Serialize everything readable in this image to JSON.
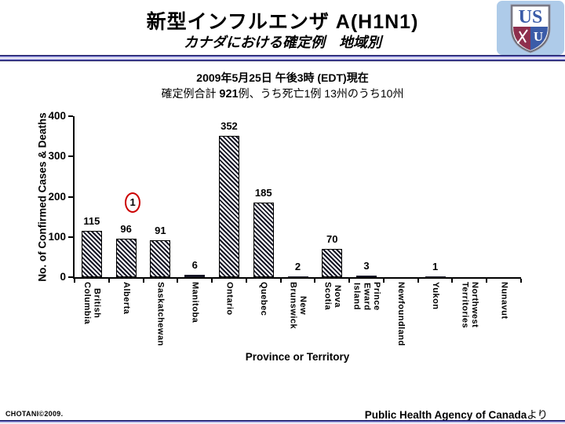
{
  "slide": {
    "title": "新型インフルエンザ A(H1N1)",
    "subtitle": "カナダにおける確定例　地域別",
    "date_line": "2009年5月25日  午後3時 (EDT)現在",
    "stats": {
      "prefix": "確定例合計 ",
      "total": "921",
      "suffix": "例、うち死亡1例 13州のうち10州"
    },
    "footer_left": "CHOTANI©2009.",
    "footer_right_bold": "Public Health Agency of Canada",
    "footer_right_suffix": "より"
  },
  "logo": {
    "name": "USU shield crest",
    "letters_chief": "US",
    "letter_quarter": "U",
    "bg_color": "#aecbe9",
    "blue": "#3b5ca8",
    "maroon": "#8e2f4d",
    "outline": "#9a9aa6"
  },
  "colors": {
    "divider_navy": "#14145a",
    "annotation_red": "#cc0000",
    "bar_pattern": "#151525",
    "text": "#000000"
  },
  "chart_data": {
    "type": "bar",
    "title": "",
    "xlabel": "Province or Territory",
    "ylabel": "No. of Confirmed Cases & Deaths",
    "ylim": [
      0,
      400
    ],
    "yticks": [
      0,
      100,
      200,
      300,
      400
    ],
    "grid": false,
    "legend": false,
    "bar_fill": "diagonal-hatch",
    "categories": [
      "British\nColumbia",
      "Alberta",
      "Saskatchewan",
      "Manitoba",
      "Ontario",
      "Quebec",
      "New\nBrunswick",
      "Nova Scotia",
      "Prince Eward\nIsland",
      "Newfoundland",
      "Yukon",
      "Northwest\nTerritories",
      "Nunavut"
    ],
    "values": [
      115,
      96,
      91,
      6,
      352,
      185,
      2,
      70,
      3,
      0,
      1,
      0,
      0
    ],
    "value_labels_shown_if_positive": true,
    "annotation": {
      "text": "1",
      "meaning": "1 death, circled in red",
      "category_index": 1,
      "color": "#cc0000"
    }
  }
}
